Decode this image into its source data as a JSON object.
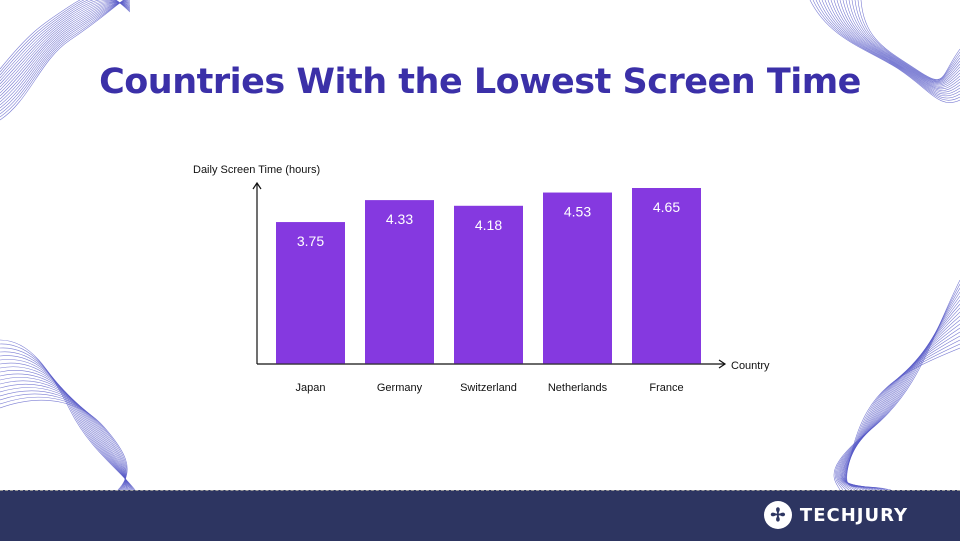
{
  "title": "Countries With the Lowest Screen Time",
  "colors": {
    "title": "#3b30a8",
    "bar": "#8539e0",
    "footer": "#2d3561",
    "deco": "#5a5cc8"
  },
  "chart_data": {
    "type": "bar",
    "categories": [
      "Japan",
      "Germany",
      "Switzerland",
      "Netherlands",
      "France"
    ],
    "values": [
      3.75,
      4.33,
      4.18,
      4.53,
      4.65
    ],
    "data_labels": [
      "3.75",
      "4.33",
      "4.18",
      "4.53",
      "4.65"
    ],
    "xlabel": "Country",
    "ylabel": "Daily Screen Time (hours)",
    "ylim": [
      0,
      4.8
    ],
    "grid": false,
    "legend": "none"
  },
  "footer": {
    "brand": "TECHJURY",
    "logo_icon": "techjury-logo-icon"
  }
}
